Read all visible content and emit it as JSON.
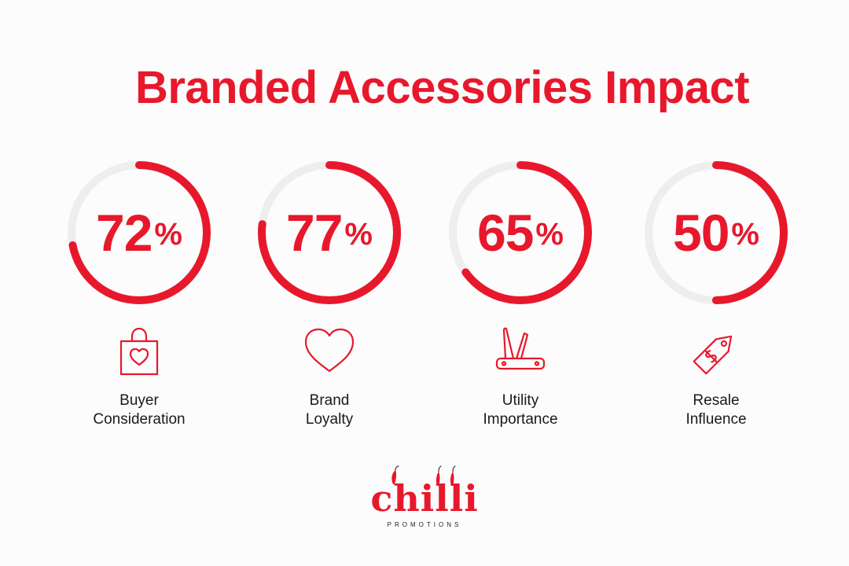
{
  "title": "Branded Accessories Impact",
  "colors": {
    "accent": "#e8182c",
    "track": "#eeeeee",
    "text": "#1a1a1a"
  },
  "chart_data": {
    "type": "pie",
    "title": "Branded Accessories Impact",
    "unit": "%",
    "max": 100,
    "stats": [
      {
        "value": 72,
        "display": "72",
        "label_lines": [
          "Buyer",
          "Consideration"
        ],
        "icon": "shopping-bag-heart-icon"
      },
      {
        "value": 77,
        "display": "77",
        "label_lines": [
          "Brand",
          "Loyalty"
        ],
        "icon": "heart-icon"
      },
      {
        "value": 65,
        "display": "65",
        "label_lines": [
          "Utility",
          "Importance"
        ],
        "icon": "pocket-knife-icon"
      },
      {
        "value": 50,
        "display": "50",
        "label_lines": [
          "Resale",
          "Influence"
        ],
        "icon": "price-tag-icon"
      }
    ]
  },
  "logo": {
    "name": "chilli",
    "tagline": "PROMOTIONS"
  }
}
